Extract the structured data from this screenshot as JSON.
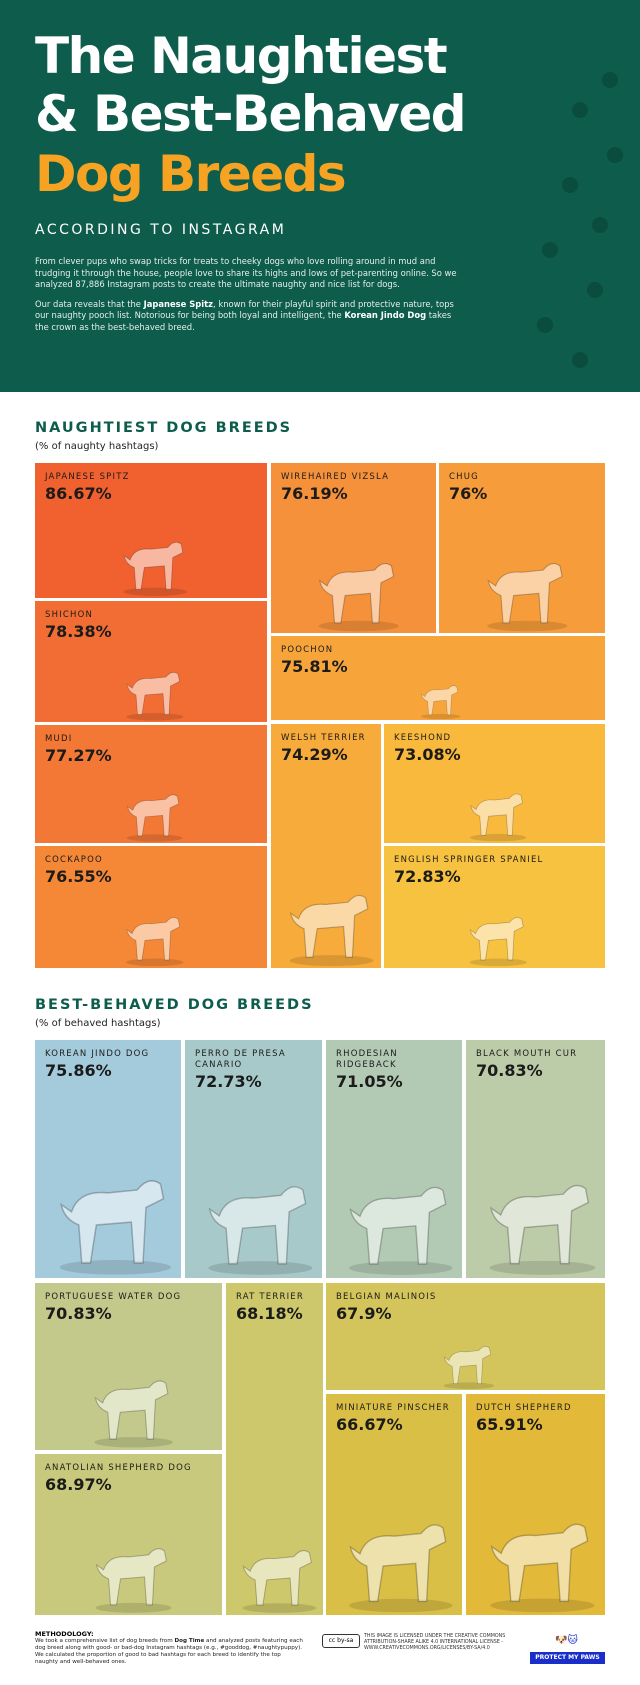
{
  "header": {
    "title_line1": "The Naughtiest",
    "title_line2": "& Best-Behaved",
    "title_line3": "Dog Breeds",
    "subtitle": "ACCORDING TO INSTAGRAM",
    "paragraph1": "From clever pups who swap tricks for treats to cheeky dogs who love rolling around in mud and trudging it through the house, people love to share its highs and lows of pet-parenting online. So we analyzed 87,886 Instagram posts to create the ultimate naughty and nice list for dogs.",
    "p2_a": "Our data reveals that the ",
    "p2_b": "Japanese Spitz",
    "p2_c": ", known for their playful spirit and protective nature, tops our naughty pooch list. Notorious for being both loyal and intelligent, the ",
    "p2_d": "Korean Jindo Dog",
    "p2_e": " takes the crown as the best-behaved breed.",
    "bg_color": "#0d5c4c",
    "accent_color": "#f6a324"
  },
  "naughty": {
    "heading": "NAUGHTIEST DOG BREEDS",
    "subheading": "(% of naughty hashtags)",
    "breeds": [
      {
        "name": "JAPANESE SPITZ",
        "value": "86.67%",
        "color": "#f0612f"
      },
      {
        "name": "SHICHON",
        "value": "78.38%",
        "color": "#f26d33"
      },
      {
        "name": "MUDI",
        "value": "77.27%",
        "color": "#f37735"
      },
      {
        "name": "COCKAPOO",
        "value": "76.55%",
        "color": "#f58836"
      },
      {
        "name": "WIREHAIRED VIZSLA",
        "value": "76.19%",
        "color": "#f5913a"
      },
      {
        "name": "CHUG",
        "value": "76%",
        "color": "#f69c3a"
      },
      {
        "name": "POOCHON",
        "value": "75.81%",
        "color": "#f7a43b"
      },
      {
        "name": "WELSH TERRIER",
        "value": "74.29%",
        "color": "#f7ab3a"
      },
      {
        "name": "KEESHOND",
        "value": "73.08%",
        "color": "#f8b93d"
      },
      {
        "name": "ENGLISH SPRINGER SPANIEL",
        "value": "72.83%",
        "color": "#f7c240"
      }
    ]
  },
  "behaved": {
    "heading": "BEST-BEHAVED DOG BREEDS",
    "subheading": "(% of behaved hashtags)",
    "breeds": [
      {
        "name": "KOREAN JINDO DOG",
        "value": "75.86%",
        "color": "#a4cbdb"
      },
      {
        "name": "PERRO DE PRESA CANARIO",
        "value": "72.73%",
        "color": "#a8c9c9"
      },
      {
        "name": "RHODESIAN RIDGEBACK",
        "value": "71.05%",
        "color": "#b2cab4"
      },
      {
        "name": "BLACK MOUTH CUR",
        "value": "70.83%",
        "color": "#bccba8"
      },
      {
        "name": "PORTUGUESE WATER DOG",
        "value": "70.83%",
        "color": "#c2c98b"
      },
      {
        "name": "ANATOLIAN SHEPHERD DOG",
        "value": "68.97%",
        "color": "#c8c97c"
      },
      {
        "name": "RAT TERRIER",
        "value": "68.18%",
        "color": "#cdc86b"
      },
      {
        "name": "BELGIAN MALINOIS",
        "value": "67.9%",
        "color": "#d3c55b"
      },
      {
        "name": "MINIATURE PINSCHER",
        "value": "66.67%",
        "color": "#dabf47"
      },
      {
        "name": "DUTCH SHEPHERD",
        "value": "65.91%",
        "color": "#e2b939"
      }
    ]
  },
  "footer": {
    "methodology_heading": "METHODOLOGY:",
    "m_a": "We took a comprehensive list of dog breeds from ",
    "m_b": "Dog Time",
    "m_c": " and analyzed posts featuring each dog breed along with good- or bad-dog Instagram hashtags (e.g., #gooddog, #naughtypuppy). We calculated the proportion of good to bad hashtags for each breed to identify the top naughty and well-behaved ones.",
    "cc_badge": "cc by-sa",
    "license": "THIS IMAGE IS LICENSED UNDER THE CREATIVE COMMONS ATTRIBUTION-SHARE ALIKE 4.0 INTERNATIONAL LICENSE - WWW.CREATIVECOMMONS.ORG/LICENSES/BY-SA/4.0",
    "brand": "PROTECT MY PAWS"
  }
}
